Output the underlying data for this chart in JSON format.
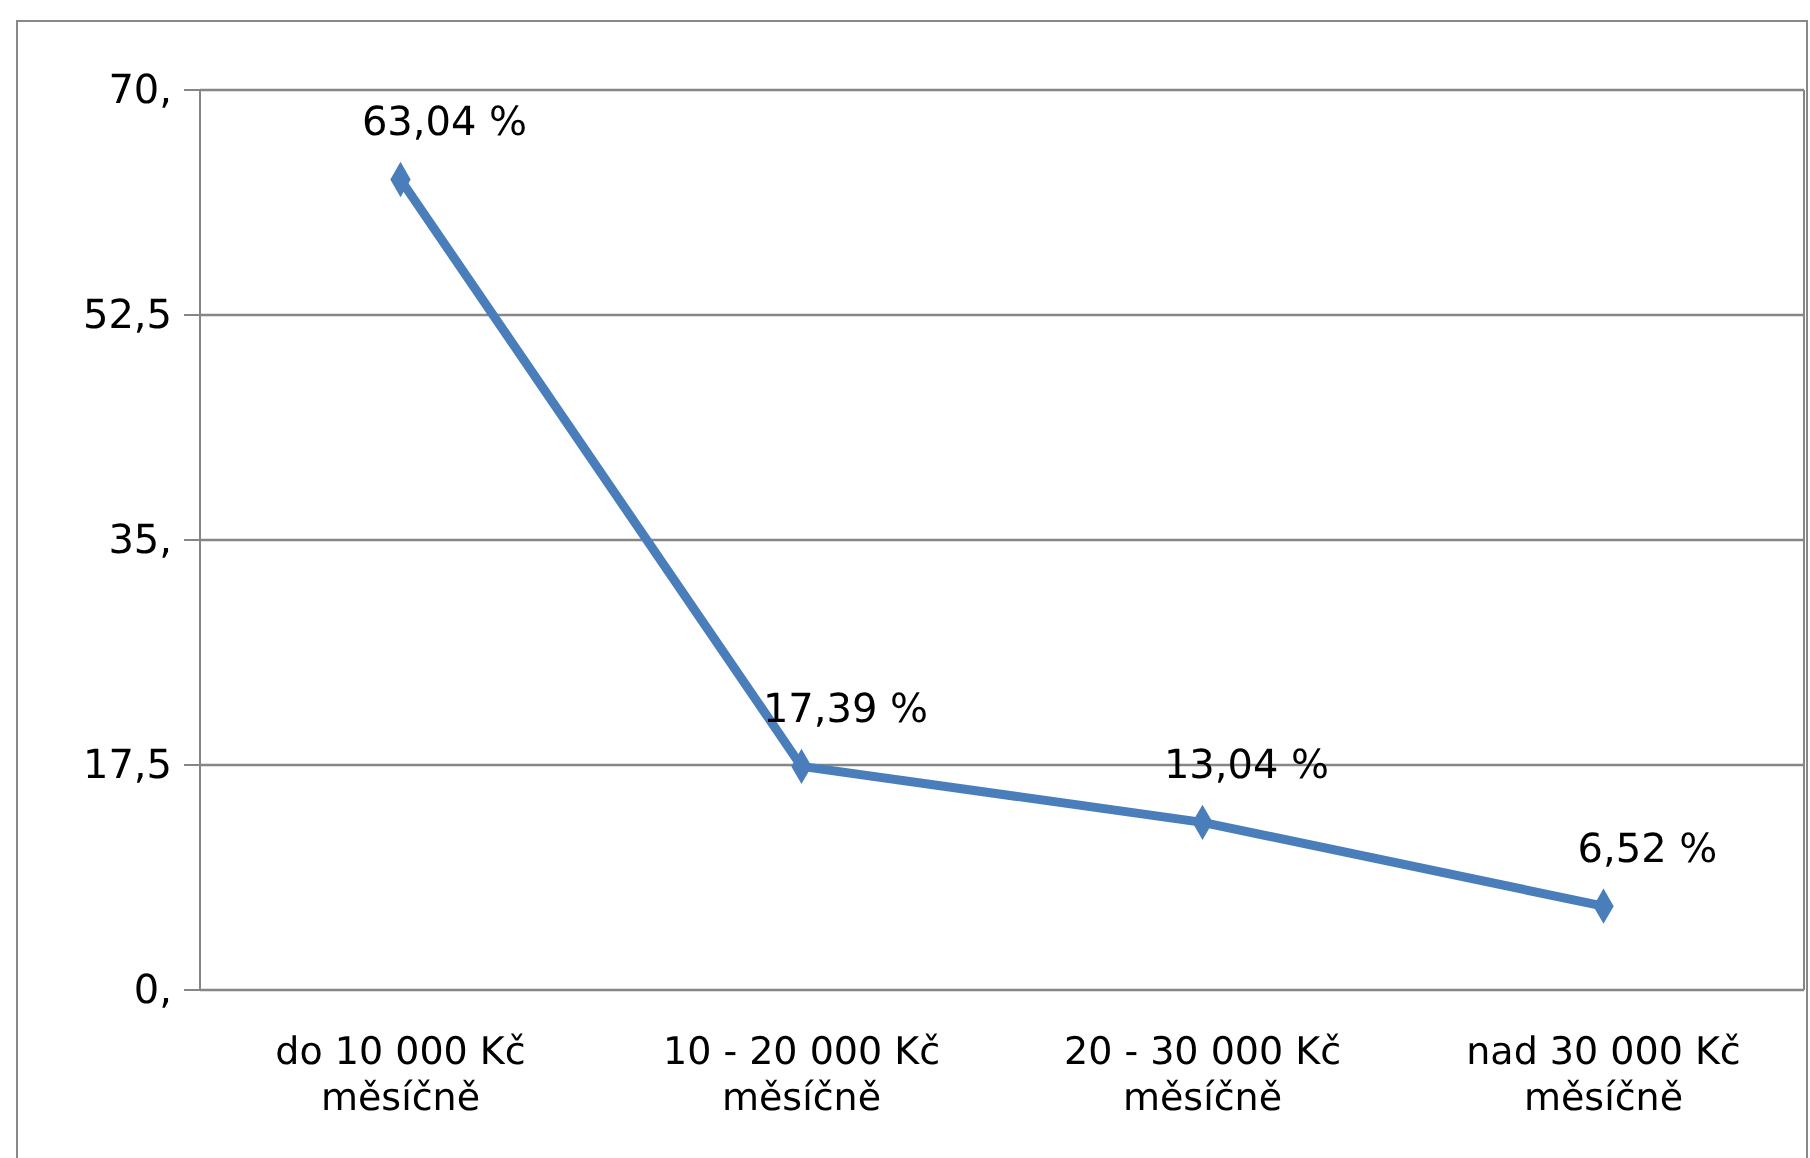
{
  "chart_data": {
    "type": "line",
    "categories": [
      "do 10 000 Kč\nměsíčně",
      "10 - 20 000 Kč\nměsíčně",
      "20 - 30 000 Kč\nměsíčně",
      "nad 30 000 Kč\nměsíčně"
    ],
    "series": [
      {
        "color": "#4a7ebb",
        "values": [
          63.04,
          17.39,
          13.04,
          6.52
        ],
        "value_labels": [
          "63,04 %",
          "17,39 %",
          "13,04 %",
          "6,52 %"
        ]
      }
    ],
    "ylim": [
      0,
      70
    ],
    "yticks": [
      {
        "value": 0,
        "label": "0,"
      },
      {
        "value": 17.5,
        "label": "17,5"
      },
      {
        "value": 35,
        "label": "35,"
      },
      {
        "value": 52.5,
        "label": "52,5"
      },
      {
        "value": 70,
        "label": "70,"
      }
    ],
    "grid": "y",
    "marker": "diamond",
    "line_style": "solid"
  }
}
